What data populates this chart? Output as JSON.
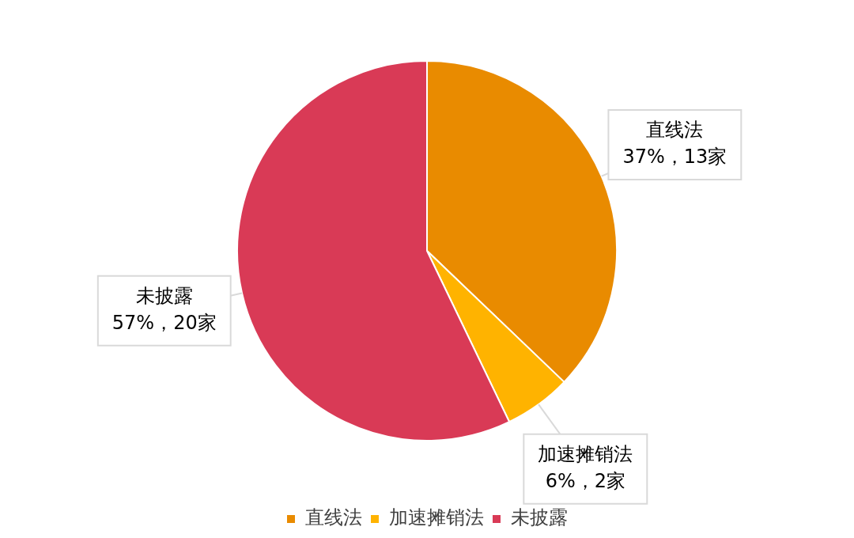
{
  "chart_data": {
    "type": "pie",
    "categories": [
      "直线法",
      "加速摊销法",
      "未披露"
    ],
    "values": [
      13,
      2,
      20
    ],
    "colors": [
      "#e98b00",
      "#ffb300",
      "#d93a56"
    ],
    "value_labels": [
      "37%，13家",
      "6%，2家",
      "57%，20家"
    ],
    "legend": "bottom"
  }
}
